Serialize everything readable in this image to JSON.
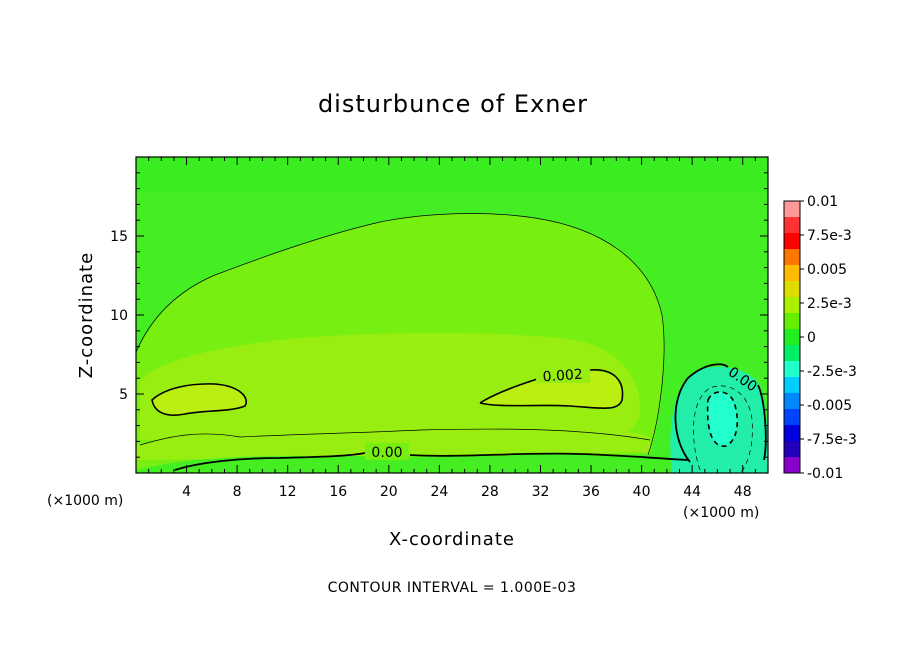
{
  "chart_data": {
    "type": "heatmap",
    "title": "disturbunce of Exner",
    "xlabel": "X-coordinate",
    "ylabel": "Z-coordinate",
    "x_unit_left": "(×1000 m)",
    "x_unit_right": "(×1000 m)",
    "xlim": [
      0,
      50
    ],
    "ylim": [
      0,
      20
    ],
    "x_ticks": [
      4,
      8,
      12,
      16,
      20,
      24,
      28,
      32,
      36,
      40,
      44,
      48
    ],
    "y_ticks": [
      5,
      10,
      15
    ],
    "colorbar": {
      "labels": [
        "0.01",
        "7.5e-3",
        "0.005",
        "2.5e-3",
        "0",
        "-2.5e-3",
        "-0.005",
        "-7.5e-3",
        "-0.01"
      ],
      "colors": [
        "#ff9999",
        "#ff3333",
        "#ff0000",
        "#ff7700",
        "#ffbb00",
        "#dddd00",
        "#aaf000",
        "#66ee00",
        "#22ee22",
        "#00ee66",
        "#22ffcc",
        "#00ccff",
        "#0088ff",
        "#0044ff",
        "#0000dd",
        "#2200bb",
        "#8800cc"
      ]
    },
    "contour_labels": [
      "0.002",
      "0.00",
      "0.00"
    ],
    "footer": "CONTOUR INTERVAL = 1.000E-03"
  },
  "colors": {
    "background_field": "#44ee22",
    "level_1": "#77f011",
    "level_2": "#99ee11",
    "negative": "#22eeaa",
    "negative_core": "#22ffcc"
  }
}
